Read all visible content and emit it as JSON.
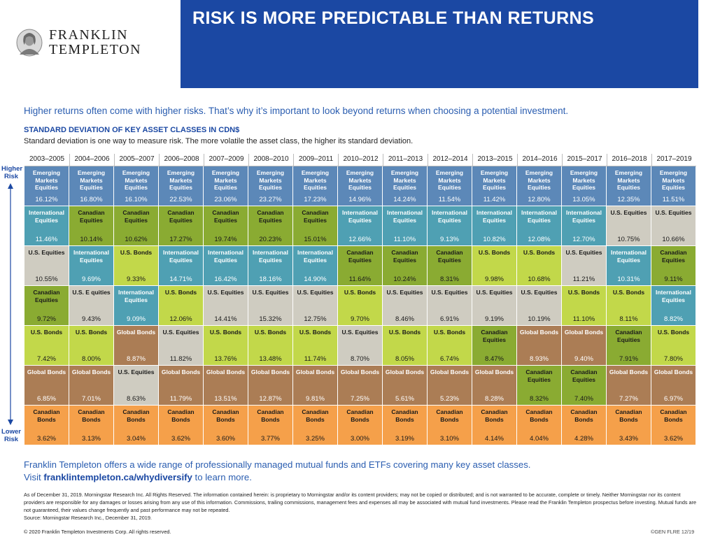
{
  "brand": {
    "line1": "FRANKLIN",
    "line2": "TEMPLETON"
  },
  "banner": {
    "title": "RISK IS MORE PREDICTABLE THAN RETURNS",
    "color": "#1b48a3"
  },
  "intro": "Higher returns often come with higher risks. That’s why it’s important to look beyond returns when choosing a potential investment.",
  "section": {
    "heading": "STANDARD DEVIATION OF KEY ASSET CLASSES IN CDN$",
    "subheading": "Standard deviation is one way to measure risk. The more volatile the asset class, the higher its standard deviation."
  },
  "risk_axis": {
    "higher": "Higher Risk",
    "lower": "Lower Risk"
  },
  "asset_colors": {
    "Emerging Markets Equities": "#5c88b8",
    "International Equities": "#4fa0b3",
    "Canadian Equities": "#8aab32",
    "U.S. Equities": "#cfccc1",
    "U.S. Bonds": "#c2d84a",
    "Global Bonds": "#ab7d55",
    "Canadian Bonds": "#f5a04a"
  },
  "chart_data": {
    "type": "table",
    "periods": [
      "2003–2005",
      "2004–2006",
      "2005–2007",
      "2006–2008",
      "2007–2009",
      "2008–2010",
      "2009–2011",
      "2010–2012",
      "2011–2013",
      "2012–2014",
      "2013–2015",
      "2014–2016",
      "2015–2017",
      "2016–2018",
      "2017–2019"
    ],
    "columns": [
      [
        [
          "Emerging Markets Equities",
          "16.12%"
        ],
        [
          "International Equities",
          "11.46%"
        ],
        [
          "U.S. Equities",
          "10.55%"
        ],
        [
          "Canadian Equities",
          "9.72%"
        ],
        [
          "U.S. Bonds",
          "7.42%"
        ],
        [
          "Global Bonds",
          "6.85%"
        ],
        [
          "Canadian Bonds",
          "3.62%"
        ]
      ],
      [
        [
          "Emerging Markets Equities",
          "16.80%"
        ],
        [
          "Canadian Equities",
          "10.14%"
        ],
        [
          "International Equities",
          "9.69%"
        ],
        [
          "U.S. E quities",
          "9.43%"
        ],
        [
          "U.S. Bonds",
          "8.00%"
        ],
        [
          "Global Bonds",
          "7.01%"
        ],
        [
          "Canadian Bonds",
          "3.13%"
        ]
      ],
      [
        [
          "Emerging Markets Equities",
          "16.10%"
        ],
        [
          "Canadian Equities",
          "10.62%"
        ],
        [
          "U.S. Bonds",
          "9.33%"
        ],
        [
          "International Equities",
          "9.09%"
        ],
        [
          "Global Bonds",
          "8.87%"
        ],
        [
          "U.S. Equities",
          "8.63%"
        ],
        [
          "Canadian Bonds",
          "3.04%"
        ]
      ],
      [
        [
          "Emerging Markets Equities",
          "22.53%"
        ],
        [
          "Canadian Equities",
          "17.27%"
        ],
        [
          "International Equities",
          "14.71%"
        ],
        [
          "U.S. Bonds",
          "12.06%"
        ],
        [
          "U.S. Equities",
          "11.82%"
        ],
        [
          "Global Bonds",
          "11.79%"
        ],
        [
          "Canadian Bonds",
          "3.62%"
        ]
      ],
      [
        [
          "Emerging Markets Equities",
          "23.06%"
        ],
        [
          "Canadian Equities",
          "19.74%"
        ],
        [
          "International Equities",
          "16.42%"
        ],
        [
          "U.S. Equities",
          "14.41%"
        ],
        [
          "U.S. Bonds",
          "13.76%"
        ],
        [
          "Global Bonds",
          "13.51%"
        ],
        [
          "Canadian Bonds",
          "3.60%"
        ]
      ],
      [
        [
          "Emerging Markets Equities",
          "23.27%"
        ],
        [
          "Canadian Equities",
          "20.23%"
        ],
        [
          "International Equities",
          "18.16%"
        ],
        [
          "U.S. Equities",
          "15.32%"
        ],
        [
          "U.S. Bonds",
          "13.48%"
        ],
        [
          "Global Bonds",
          "12.87%"
        ],
        [
          "Canadian Bonds",
          "3.77%"
        ]
      ],
      [
        [
          "Emerging Markets Equities",
          "17.23%"
        ],
        [
          "Canadian Equities",
          "15.01%"
        ],
        [
          "International Equities",
          "14.90%"
        ],
        [
          "U.S. Equities",
          "12.75%"
        ],
        [
          "U.S. Bonds",
          "11.74%"
        ],
        [
          "Global Bonds",
          "9.81%"
        ],
        [
          "Canadian Bonds",
          "3.25%"
        ]
      ],
      [
        [
          "Emerging Markets Equities",
          "14.96%"
        ],
        [
          "International Equities",
          "12.66%"
        ],
        [
          "Canadian Equities",
          "11.64%"
        ],
        [
          "U.S. Bonds",
          "9.70%"
        ],
        [
          "U.S. Equities",
          "8.70%"
        ],
        [
          "Global Bonds",
          "7.25%"
        ],
        [
          "Canadian Bonds",
          "3.00%"
        ]
      ],
      [
        [
          "Emerging Markets Equities",
          "14.24%"
        ],
        [
          "International Equities",
          "11.10%"
        ],
        [
          "Canadian Equities",
          "10.24%"
        ],
        [
          "U.S. Equities",
          "8.46%"
        ],
        [
          "U.S. Bonds",
          "8.05%"
        ],
        [
          "Global Bonds",
          "5.61%"
        ],
        [
          "Canadian Bonds",
          "3.19%"
        ]
      ],
      [
        [
          "Emerging Markets Equities",
          "11.54%"
        ],
        [
          "International Equities",
          "9.13%"
        ],
        [
          "Canadian Equities",
          "8.31%"
        ],
        [
          "U.S. Equities",
          "6.91%"
        ],
        [
          "U.S. Bonds",
          "6.74%"
        ],
        [
          "Global Bonds",
          "5.23%"
        ],
        [
          "Canadian Bonds",
          "3.10%"
        ]
      ],
      [
        [
          "Emerging Markets Equities",
          "11.42%"
        ],
        [
          "International Equities",
          "10.82%"
        ],
        [
          "U.S. Bonds",
          "9.98%"
        ],
        [
          "U.S. Equities",
          "9.19%"
        ],
        [
          "Canadian Equities",
          "8.47%"
        ],
        [
          "Global Bonds",
          "8.28%"
        ],
        [
          "Canadian Bonds",
          "4.14%"
        ]
      ],
      [
        [
          "Emerging Markets Equities",
          "12.80%"
        ],
        [
          "International Equities",
          "12.08%"
        ],
        [
          "U.S. Bonds",
          "10.68%"
        ],
        [
          "U.S. Equities",
          "10.19%"
        ],
        [
          "Global Bonds",
          "8.93%"
        ],
        [
          "Canadian Equities",
          "8.32%"
        ],
        [
          "Canadian Bonds",
          "4.04%"
        ]
      ],
      [
        [
          "Emerging Markets Equities",
          "13.05%"
        ],
        [
          "International Equities",
          "12.70%"
        ],
        [
          "U.S. Equities",
          "11.21%"
        ],
        [
          "U.S. Bonds",
          "11.10%"
        ],
        [
          "Global Bonds",
          "9.40%"
        ],
        [
          "Canadian Equities",
          "7.40%"
        ],
        [
          "Canadian Bonds",
          "4.28%"
        ]
      ],
      [
        [
          "Emerging Markets Equities",
          "12.35%"
        ],
        [
          "U.S. Equities",
          "10.75%"
        ],
        [
          "International Equities",
          "10.31%"
        ],
        [
          "U.S. Bonds",
          "8.11%"
        ],
        [
          "Canadian Equities",
          "7.91%"
        ],
        [
          "Global Bonds",
          "7.27%"
        ],
        [
          "Canadian Bonds",
          "3.43%"
        ]
      ],
      [
        [
          "Emerging Markets Equities",
          "11.51%"
        ],
        [
          "U.S. Equities",
          "10.66%"
        ],
        [
          "Canadian Equities",
          "9.11%"
        ],
        [
          "International Equities",
          "8.82%"
        ],
        [
          "U.S. Bonds",
          "7.80%"
        ],
        [
          "Global Bonds",
          "6.97%"
        ],
        [
          "Canadian Bonds",
          "3.62%"
        ]
      ]
    ]
  },
  "promo": {
    "line1": "Franklin Templeton offers a wide range of professionally managed mutual funds and ETFs covering many key asset classes.",
    "visit_prefix": "Visit ",
    "link": "franklintempleton.ca/whydiversify",
    "visit_suffix": " to learn more."
  },
  "disclaimer": "As of December 31, 2019. Morningstar Research Inc. All Rights Reserved. The information contained herein: is proprietary to Morningstar and/or its content providers; may not be copied or distributed; and is not warranted to be accurate, complete or timely. Neither Morningstar nor its content providers are responsible for any damages or losses arising from any use of this information. Commissions, trailing commissions, management fees and expenses all may be associated with mutual fund investments. Please read the Franklin Templeton prospectus before investing. Mutual funds are not guaranteed, their values change frequently and past performance may not be repeated.",
  "source": "Source: Morningstar Research Inc., December 31, 2019.",
  "copyright": "© 2020 Franklin Templeton Investments Corp. All rights reserved.",
  "code": "©GEN FLRE 12/19"
}
